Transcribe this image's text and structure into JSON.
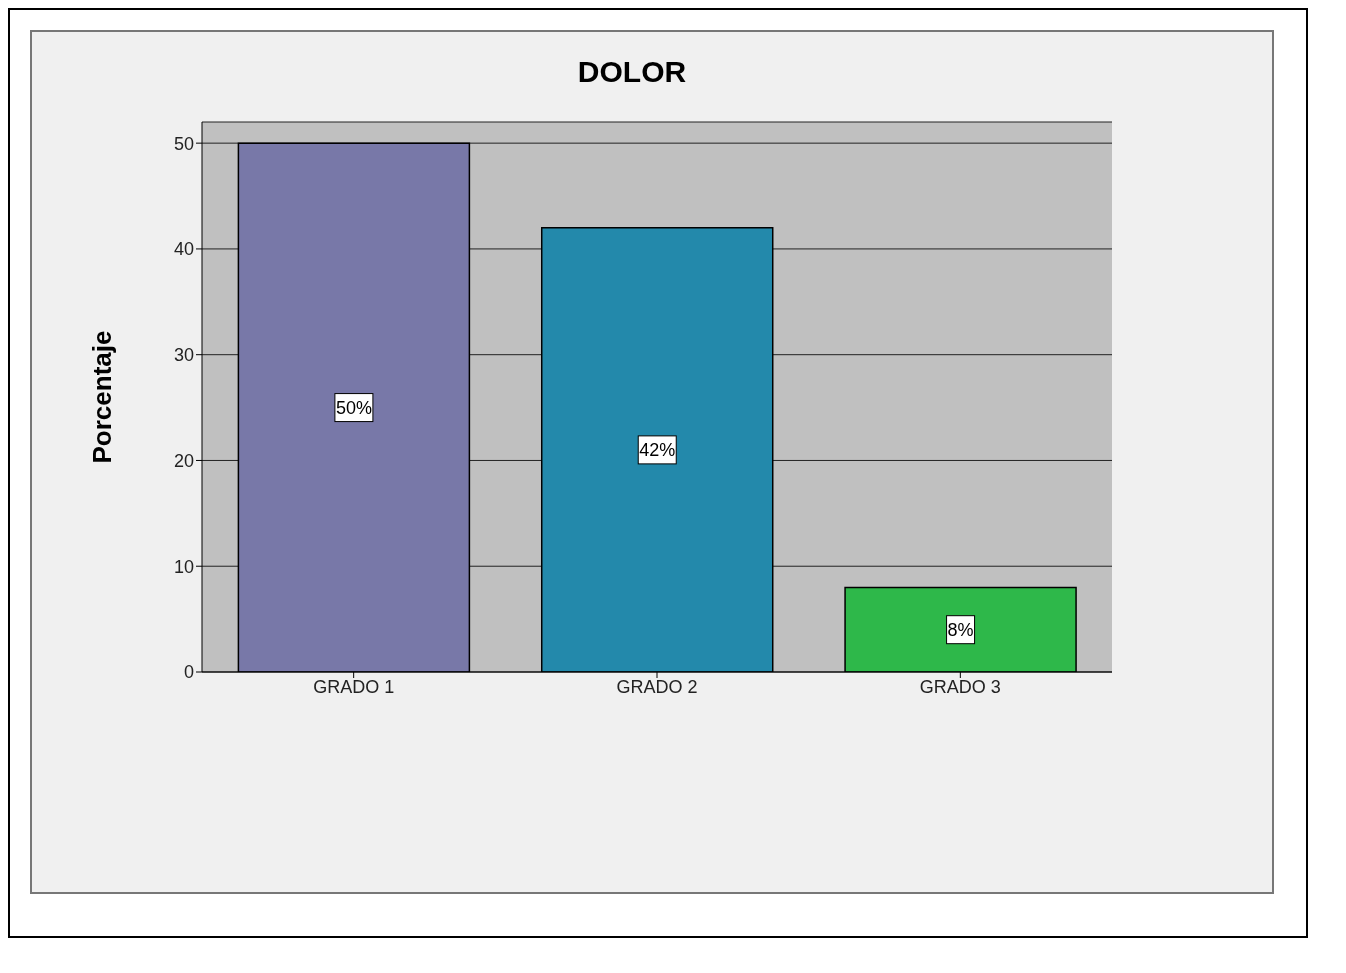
{
  "chart_data": {
    "type": "bar",
    "title": "DOLOR",
    "ylabel": "Porcentaje",
    "categories": [
      "GRADO 1",
      "GRADO 2",
      "GRADO 3"
    ],
    "values": [
      50,
      42,
      8
    ],
    "colors": [
      "#7878a8",
      "#2389ab",
      "#2eb84a"
    ],
    "value_labels": [
      "50%",
      "42%",
      "8%"
    ],
    "ylim": [
      0,
      52
    ],
    "yticks": [
      0,
      10,
      20,
      30,
      40,
      50
    ],
    "grid": "y"
  }
}
